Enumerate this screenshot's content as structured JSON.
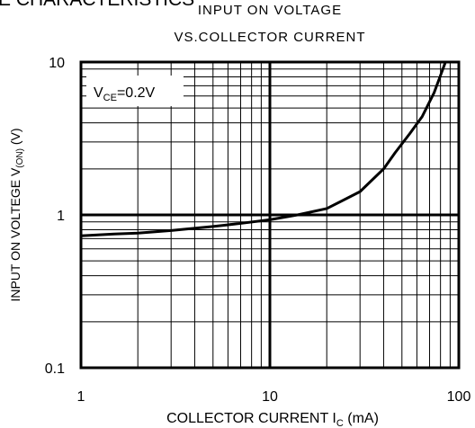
{
  "chart_data": {
    "type": "line",
    "log_scale": {
      "x": true,
      "y": true
    },
    "header": "E CHARACTERISTICS",
    "title": [
      "INPUT ON VOLTAGE",
      "VS.COLLECTOR CURRENT"
    ],
    "ylabel": [
      "INPUT ON VOLTEGE  V",
      "(ON)",
      " (V)"
    ],
    "xlabel": [
      "COLLECTOR CURRENT  I",
      "C",
      " (mA)"
    ],
    "annotation": [
      "V",
      "CE",
      "=0.2V"
    ],
    "x": [
      1,
      1.5,
      2,
      3,
      5,
      7,
      10,
      14,
      20,
      30,
      40,
      46,
      55,
      64,
      74,
      85
    ],
    "series": [
      {
        "name": "VCE=0.2V",
        "color": "#000000",
        "values": [
          0.73,
          0.75,
          0.76,
          0.79,
          0.84,
          0.88,
          0.93,
          1.0,
          1.1,
          1.42,
          2.0,
          2.55,
          3.4,
          4.4,
          6.3,
          10
        ]
      }
    ],
    "xlim": [
      1,
      100
    ],
    "ylim": [
      0.1,
      10
    ],
    "xticks": [
      1,
      10,
      100
    ],
    "yticks": [
      0.1,
      1,
      10
    ],
    "xminorticks": [
      2,
      3,
      4,
      5,
      6,
      7,
      8,
      9,
      20,
      30,
      40,
      50,
      60,
      70,
      80,
      90
    ],
    "yminorticks": [
      0.2,
      0.3,
      0.4,
      0.5,
      0.6,
      0.7,
      0.8,
      0.9,
      2,
      3,
      4,
      5,
      6,
      7,
      8,
      9
    ],
    "grid": true
  }
}
